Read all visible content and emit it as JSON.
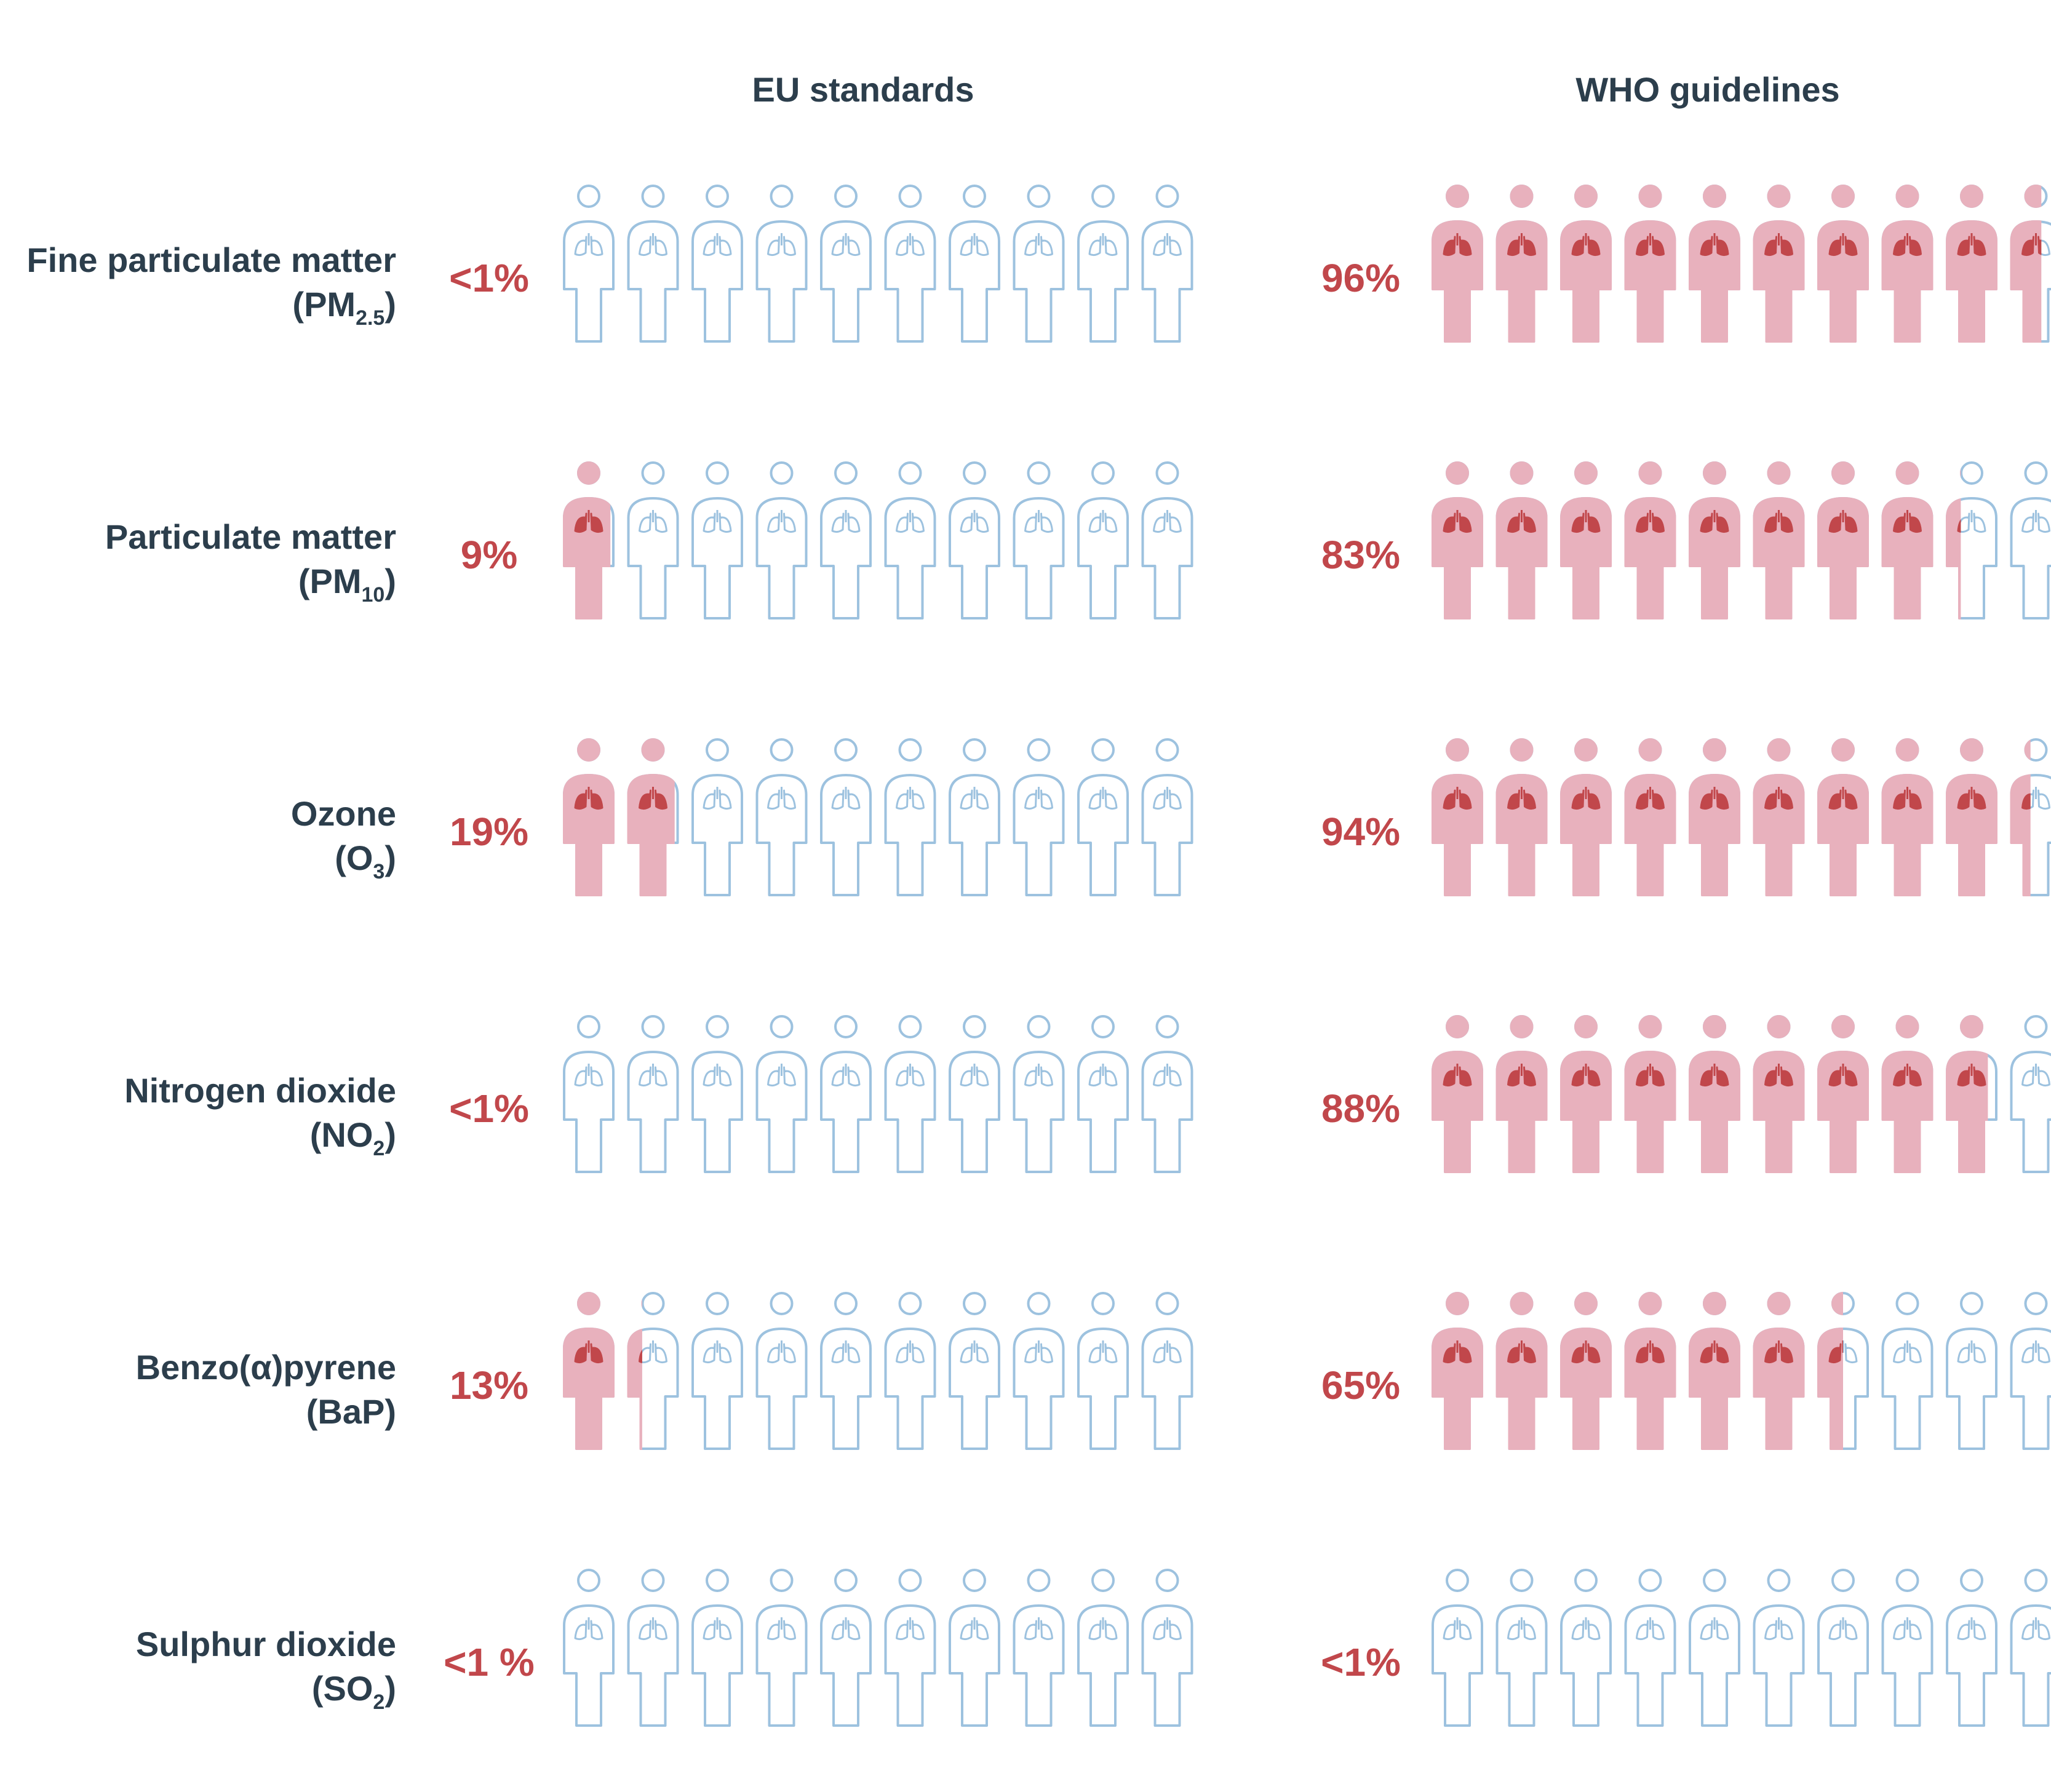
{
  "colors": {
    "text": "#2c3e4c",
    "percent": "#c1474b",
    "filled_body": "#e8b1bd",
    "lungs_filled": "#c1474b",
    "outline": "#9dc2df"
  },
  "icons": {
    "person": "person-with-lungs-icon"
  },
  "chart_data": {
    "type": "pictogram",
    "icons_per_row": 10,
    "columns": [
      "EU standards",
      "WHO guidelines"
    ],
    "rows": [
      {
        "label": "Fine particulate matter",
        "sub_main": "(PM",
        "sub_script": "2.5",
        "sub_end": ")",
        "eu_text": "<1%",
        "eu_value": 0,
        "who_text": "96%",
        "who_value": 96
      },
      {
        "label": "Particulate matter",
        "sub_main": "(PM",
        "sub_script": "10",
        "sub_end": ")",
        "eu_text": "9%",
        "eu_value": 9,
        "who_text": "83%",
        "who_value": 83
      },
      {
        "label": "Ozone",
        "sub_main": "(O",
        "sub_script": "3",
        "sub_end": ")",
        "eu_text": "19%",
        "eu_value": 19,
        "who_text": "94%",
        "who_value": 94
      },
      {
        "label": "Nitrogen dioxide",
        "sub_main": "(NO",
        "sub_script": "2",
        "sub_end": ")",
        "eu_text": "<1%",
        "eu_value": 0,
        "who_text": "88%",
        "who_value": 88
      },
      {
        "label": "Benzo(α)pyrene",
        "sub_main": "(BaP)",
        "sub_script": "",
        "sub_end": "",
        "eu_text": "13%",
        "eu_value": 13,
        "who_text": "65%",
        "who_value": 65
      },
      {
        "label": "Sulphur dioxide",
        "sub_main": "(SO",
        "sub_script": "2",
        "sub_end": ")",
        "eu_text": "<1 %",
        "eu_value": 0,
        "who_text": "<1%",
        "who_value": 0
      }
    ]
  }
}
